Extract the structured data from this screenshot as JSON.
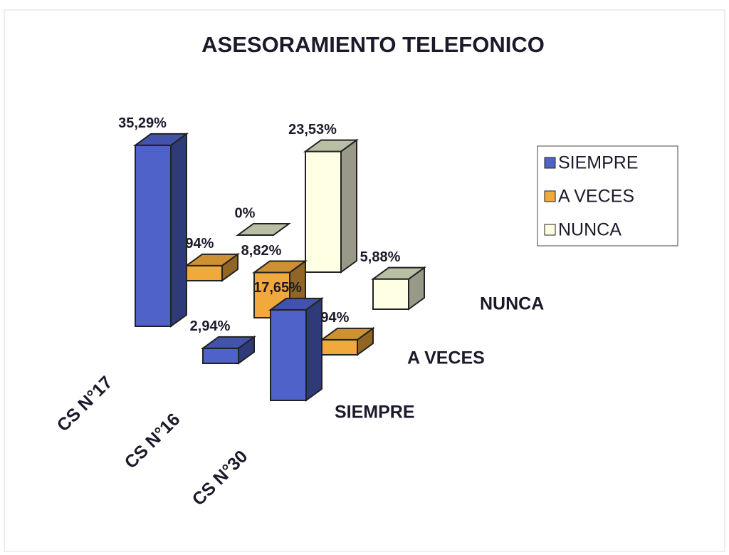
{
  "chart_data": {
    "type": "bar3d",
    "title": "ASESORAMIENTO TELEFONICO",
    "categories": [
      "CS N°17",
      "CS N°16",
      "CS N°30"
    ],
    "series": [
      {
        "name": "SIEMPRE",
        "color": "#4f62c9",
        "values": [
          35.29,
          2.94,
          17.65
        ],
        "value_labels": [
          "35,29%",
          "2,94%",
          "17,65%"
        ]
      },
      {
        "name": "A VECES",
        "color": "#f2a93b",
        "values": [
          2.94,
          8.82,
          2.94
        ],
        "value_labels": [
          "2,94%",
          "8,82%",
          "2,94%"
        ]
      },
      {
        "name": "NUNCA",
        "color": "#ffffe3",
        "values": [
          0,
          23.53,
          5.88
        ],
        "value_labels": [
          "0%",
          "23,53%",
          "5,88%"
        ]
      }
    ]
  }
}
